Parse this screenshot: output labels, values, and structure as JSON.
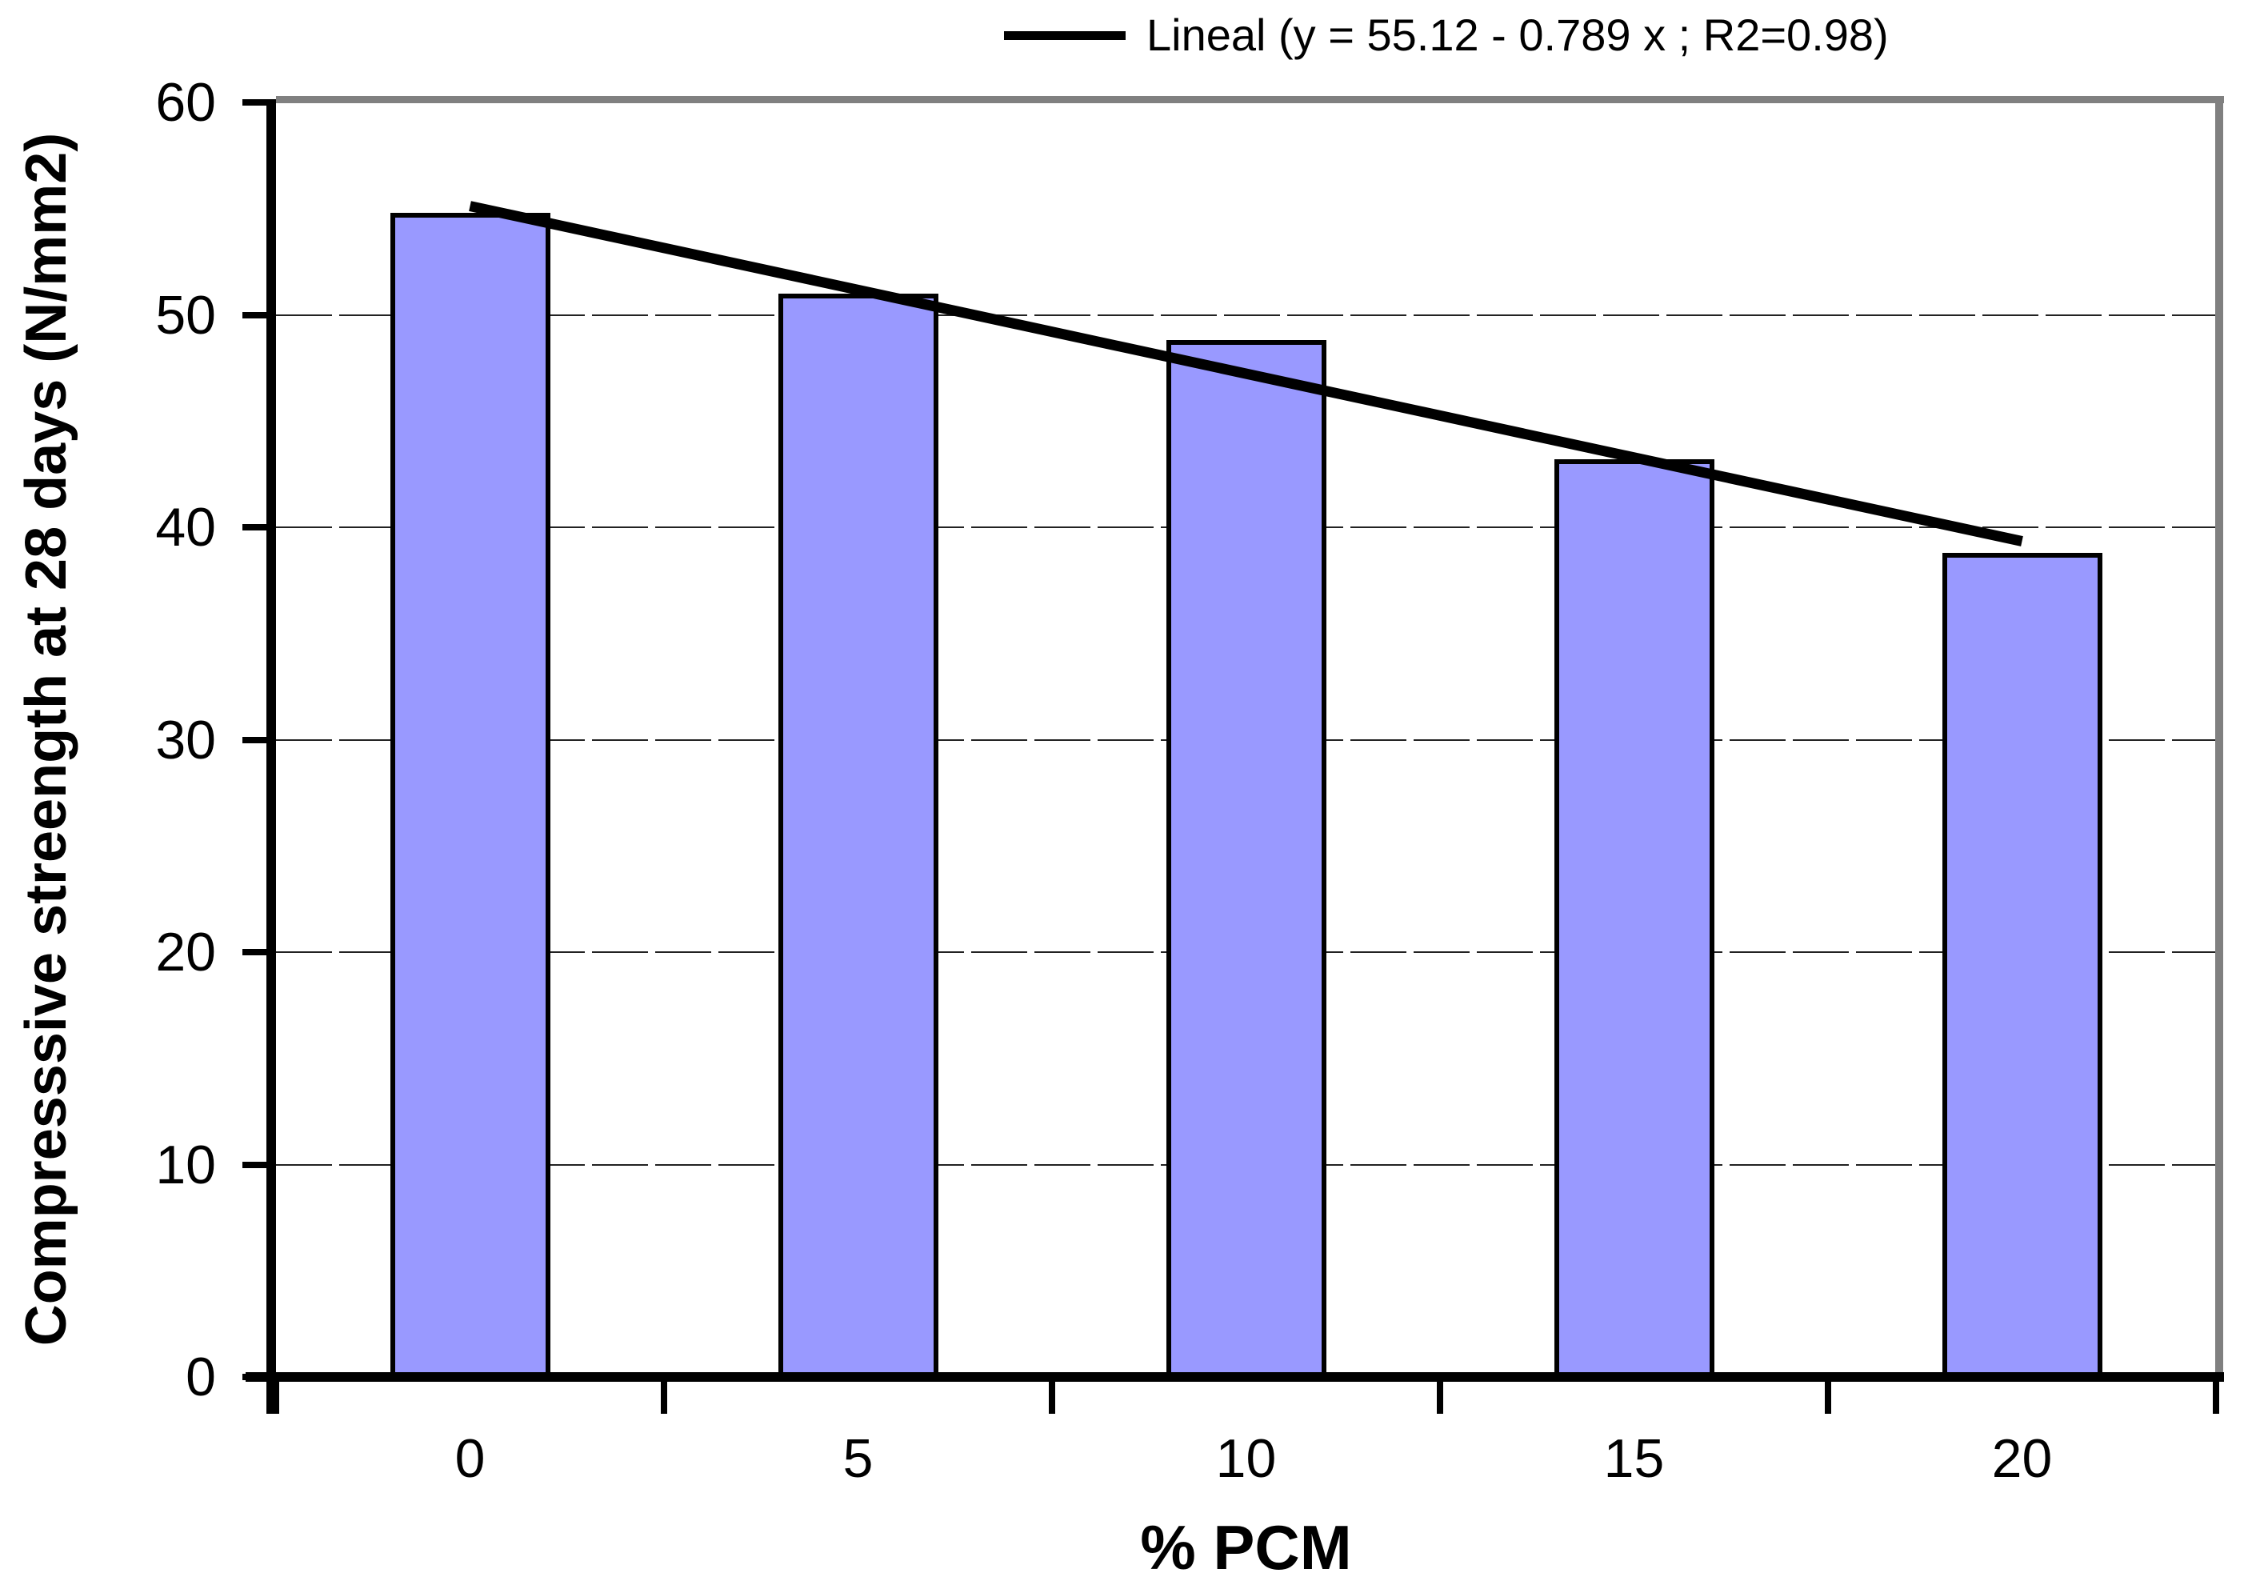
{
  "chart_data": {
    "type": "bar",
    "title": "",
    "categories": [
      "0",
      "5",
      "10",
      "15",
      "20"
    ],
    "values": [
      54.8,
      51,
      48.8,
      43.2,
      38.8
    ],
    "xlabel": "% PCM",
    "ylabel": "Compresssive streength at 28 days (N/mm2)",
    "ylim": [
      0,
      60
    ],
    "yticks": [
      0,
      10,
      20,
      30,
      40,
      50,
      60
    ],
    "grid": "horizontal dashed",
    "legend_position": "top-right",
    "trendline": {
      "label": "Lineal (y = 55.12 - 0.789 x ; R2=0.98)",
      "intercept": 55.12,
      "slope": -0.789,
      "r2": 0.98,
      "x_range": [
        0,
        20
      ]
    },
    "colors": {
      "bar_fill": "#9999FF",
      "bar_border": "#000000",
      "trendline": "#000000",
      "axis": "#000000",
      "plot_border": "#808080",
      "gridline": "#222222",
      "background": "#FFFFFF"
    }
  }
}
